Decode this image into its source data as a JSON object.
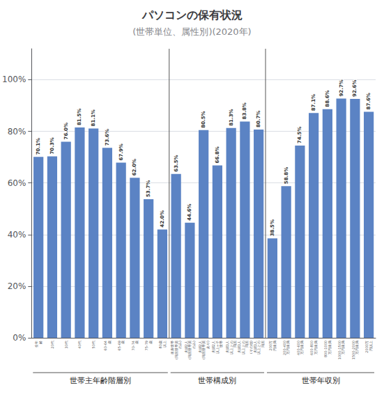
{
  "chart_data": {
    "type": "bar",
    "title": "パソコンの保有状況",
    "subtitle": "(世帯単位、属性別)(2020年)",
    "categories": [
      "全年\n齢",
      "20代",
      "30代",
      "40代",
      "50代",
      "60-64\n歳",
      "65-69\n歳",
      "70-74\n歳",
      "75-79\n歳",
      "80歳\n以上",
      "単身世帯\n(同居世帯員\nのみ)",
      "夫婦2人\n(同居世帯員\nのみ)",
      "夫婦2人\n(同居世帯員\nあり)",
      "夫婦2人\n以上+子\n世帯",
      "夫婦3人\n以上との\n同居",
      "夫婦3人\n以上との\n同居\n(その他)",
      "夫婦3人\n以上との\n同居",
      "200万\n円未満",
      "200-400\n万円未満",
      "400-600\n万円未満",
      "600-800\n万円未満",
      "800-1000\n万円未満",
      "1000-1500\n万円未満",
      "1500-2000\n万円未満",
      "2000万\n円以上"
    ],
    "values": [
      70.1,
      70.3,
      76.0,
      81.5,
      81.1,
      73.6,
      67.9,
      62.0,
      53.7,
      42.0,
      63.5,
      44.6,
      80.5,
      66.8,
      81.3,
      83.8,
      80.7,
      38.5,
      58.8,
      74.5,
      87.1,
      88.6,
      92.7,
      92.6,
      87.6
    ],
    "value_labels": [
      "70.1%",
      "70.3%",
      "76.0%",
      "81.5%",
      "81.1%",
      "73.6%",
      "67.9%",
      "62.0%",
      "53.7%",
      "42.0%",
      "63.5%",
      "44.6%",
      "80.5%",
      "66.8%",
      "81.3%",
      "83.8%",
      "80.7%",
      "38.5%",
      "58.8%",
      "74.5%",
      "87.1%",
      "88.6%",
      "92.7%",
      "92.6%",
      "87.6%"
    ],
    "color": "#5b83c4",
    "ylim": [
      0,
      112
    ],
    "yticks": [
      {
        "value": 0,
        "label": "0%"
      },
      {
        "value": 20,
        "label": "20%"
      },
      {
        "value": 40,
        "label": "40%"
      },
      {
        "value": 60,
        "label": "60%"
      },
      {
        "value": 80,
        "label": "80%"
      },
      {
        "value": 100,
        "label": "100%"
      }
    ],
    "grid": true,
    "data_labels": true,
    "groups": [
      {
        "label": "世帯主年齢階層別",
        "size": 10
      },
      {
        "label": "世帯構成別",
        "size": 7
      },
      {
        "label": "世帯年収別",
        "size": 8
      }
    ]
  }
}
